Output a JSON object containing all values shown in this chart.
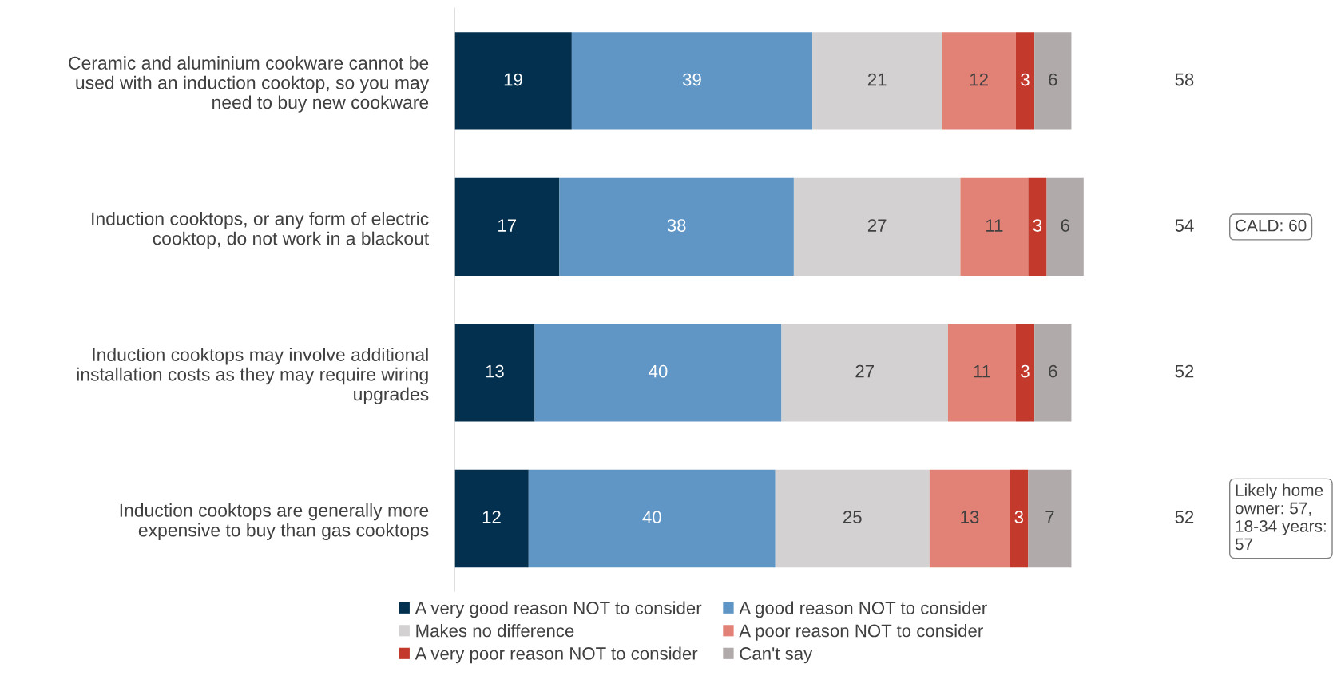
{
  "chart_data": {
    "type": "bar",
    "orientation": "horizontal",
    "stacked": true,
    "tick_labels": "y",
    "data_labels": true,
    "legend": "bottom",
    "grid": false,
    "categories": [
      "Ceramic and aluminium cookware cannot be used with an induction cooktop, so you may need to buy new cookware",
      "Induction cooktops, or any form of electric cooktop, do not work in a blackout",
      "Induction cooktops may involve additional installation costs as they may require wiring upgrades",
      "Induction cooktops are generally more expensive to buy than gas cooktops"
    ],
    "series": [
      {
        "name": "A very good reason NOT to consider",
        "color": "#03304f",
        "values": [
          19,
          17,
          13,
          12
        ]
      },
      {
        "name": "A good reason NOT to consider",
        "color": "#6096c6",
        "values": [
          39,
          38,
          40,
          40
        ]
      },
      {
        "name": "Makes no difference",
        "color": "#d3d1d1",
        "values": [
          21,
          27,
          27,
          25
        ]
      },
      {
        "name": "A poor reason NOT to consider",
        "color": "#e28277",
        "values": [
          12,
          11,
          11,
          13
        ]
      },
      {
        "name": "A very poor reason NOT to consider",
        "color": "#c33a2d",
        "values": [
          3,
          3,
          3,
          3
        ]
      },
      {
        "name": "Can't say",
        "color": "#b0abaa",
        "values": [
          6,
          6,
          6,
          7
        ]
      }
    ],
    "annotations": [
      "58",
      "54",
      "52",
      "52",
      "CALD: 60",
      "Likely home\nowner: 57,\n18-34 years:\n57"
    ]
  }
}
